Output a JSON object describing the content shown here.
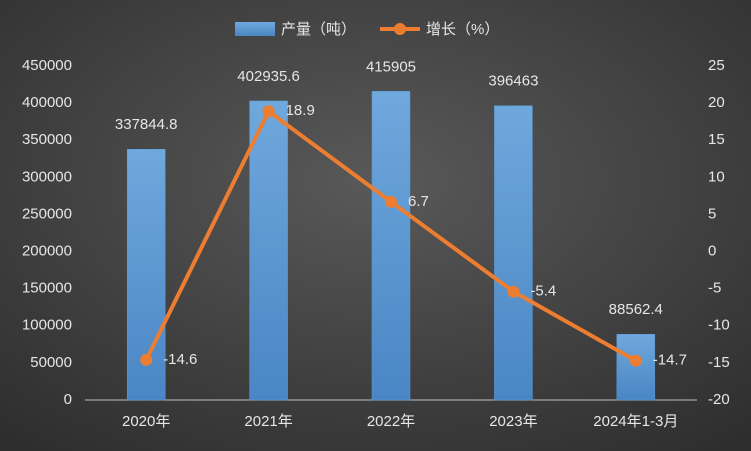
{
  "chart_data": {
    "type": "combo",
    "categories": [
      "2020年",
      "2021年",
      "2022年",
      "2023年",
      "2024年1-3月"
    ],
    "series": [
      {
        "name": "产量（吨）",
        "type": "bar",
        "color": "#5b9bd5",
        "values": [
          337844.8,
          402935.6,
          415905,
          396463,
          88562.4
        ]
      },
      {
        "name": "增长（%）",
        "type": "line",
        "color": "#ed7d31",
        "axis": "y2",
        "values": [
          -14.6,
          18.9,
          6.7,
          -5.4,
          -14.7
        ]
      }
    ],
    "ylim": [
      0,
      450000
    ],
    "yticks": [
      0,
      50000,
      100000,
      150000,
      200000,
      250000,
      300000,
      350000,
      400000,
      450000
    ],
    "y2lim": [
      -20,
      25
    ],
    "y2ticks": [
      -20,
      -15,
      -10,
      -5,
      0,
      5,
      10,
      15,
      20,
      25
    ]
  }
}
